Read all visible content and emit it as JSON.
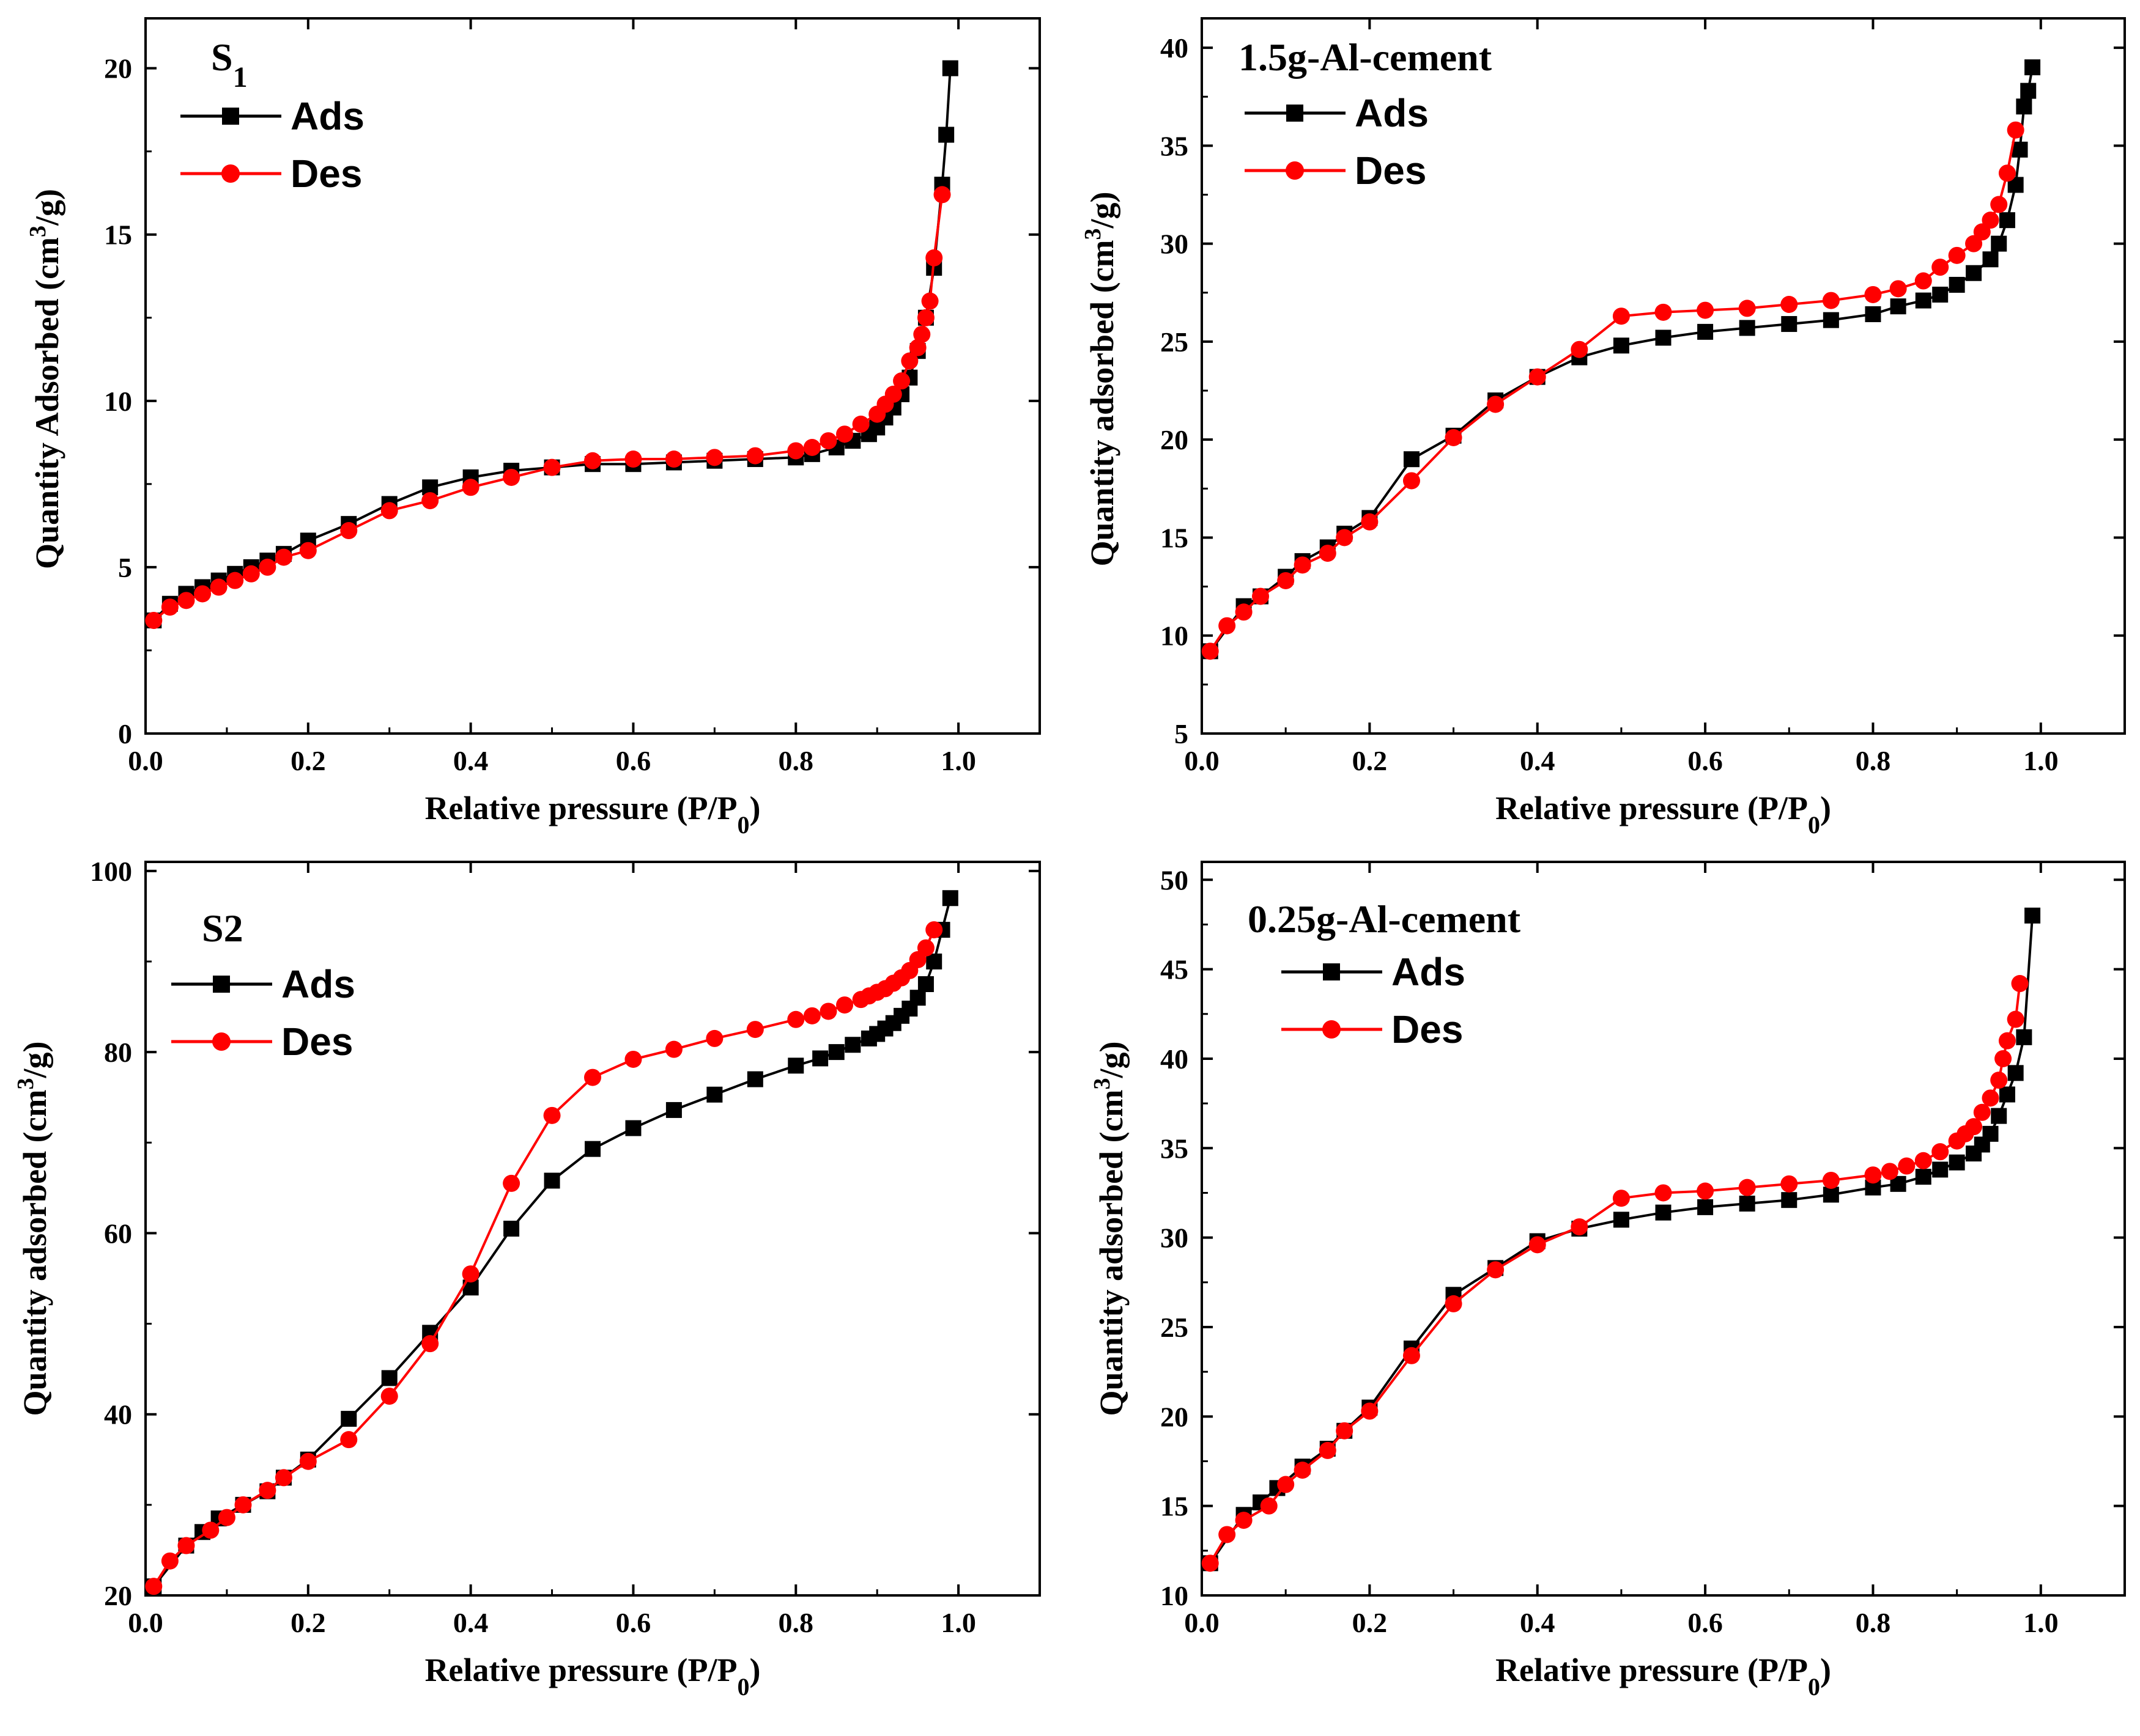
{
  "figure": {
    "colors": {
      "ads": "#000000",
      "des": "#ff0000",
      "axis": "#000000",
      "background": "#ffffff"
    }
  },
  "chart_data": [
    {
      "type": "line",
      "title": "S",
      "title_subscript": "1",
      "xlabel": "Relative pressure (P/P",
      "xlabel_sub": "0",
      "xlabel_end": ")",
      "ylabel": "Quantity Adsorbed (cm",
      "ylabel_sup": "3",
      "ylabel_end": "/g)",
      "xlim": [
        0,
        1.1
      ],
      "ylim": [
        0,
        21.5
      ],
      "xticks": [
        0.0,
        0.2,
        0.4,
        0.6,
        0.8,
        1.0
      ],
      "xtick_labels": [
        "0.0",
        "0.2",
        "0.4",
        "0.6",
        "0.8",
        "1.0"
      ],
      "yticks": [
        0,
        5,
        10,
        15,
        20
      ],
      "ytick_labels": [
        "0",
        "5",
        "10",
        "15",
        "20"
      ],
      "legend": [
        "Ads",
        "Des"
      ],
      "series": [
        {
          "name": "Ads",
          "marker": "square",
          "x": [
            0.01,
            0.03,
            0.05,
            0.07,
            0.09,
            0.11,
            0.13,
            0.15,
            0.17,
            0.2,
            0.25,
            0.3,
            0.35,
            0.4,
            0.45,
            0.5,
            0.55,
            0.6,
            0.65,
            0.7,
            0.75,
            0.8,
            0.82,
            0.85,
            0.87,
            0.89,
            0.9,
            0.91,
            0.92,
            0.93,
            0.94,
            0.95,
            0.96,
            0.97,
            0.98,
            0.985,
            0.99
          ],
          "y": [
            3.4,
            3.9,
            4.2,
            4.4,
            4.6,
            4.8,
            5.0,
            5.2,
            5.4,
            5.8,
            6.3,
            6.9,
            7.4,
            7.7,
            7.9,
            8.0,
            8.1,
            8.1,
            8.15,
            8.2,
            8.25,
            8.3,
            8.4,
            8.6,
            8.8,
            9.0,
            9.2,
            9.5,
            9.8,
            10.2,
            10.7,
            11.5,
            12.5,
            14.0,
            16.5,
            18.0,
            20.0
          ]
        },
        {
          "name": "Des",
          "marker": "circle",
          "x": [
            0.98,
            0.97,
            0.965,
            0.96,
            0.955,
            0.95,
            0.94,
            0.93,
            0.92,
            0.91,
            0.9,
            0.88,
            0.86,
            0.84,
            0.82,
            0.8,
            0.75,
            0.7,
            0.65,
            0.6,
            0.55,
            0.5,
            0.45,
            0.4,
            0.35,
            0.3,
            0.25,
            0.2,
            0.17,
            0.15,
            0.13,
            0.11,
            0.09,
            0.07,
            0.05,
            0.03,
            0.01
          ],
          "y": [
            16.2,
            14.3,
            13.0,
            12.5,
            12.0,
            11.6,
            11.2,
            10.6,
            10.2,
            9.9,
            9.6,
            9.3,
            9.0,
            8.8,
            8.6,
            8.5,
            8.35,
            8.3,
            8.25,
            8.25,
            8.2,
            8.0,
            7.7,
            7.4,
            7.0,
            6.7,
            6.1,
            5.5,
            5.3,
            5.0,
            4.8,
            4.6,
            4.4,
            4.2,
            4.0,
            3.8,
            3.4
          ]
        }
      ]
    },
    {
      "type": "line",
      "title": "1.5g-Al-cement",
      "xlabel": "Relative pressure (P/P",
      "xlabel_sub": "0",
      "xlabel_end": ")",
      "ylabel": "Quantity adsorbed (cm",
      "ylabel_sup": "3",
      "ylabel_end": "/g)",
      "xlim": [
        0,
        1.1
      ],
      "ylim": [
        5,
        41.5
      ],
      "xticks": [
        0.0,
        0.2,
        0.4,
        0.6,
        0.8,
        1.0
      ],
      "xtick_labels": [
        "0.0",
        "0.2",
        "0.4",
        "0.6",
        "0.8",
        "1.0"
      ],
      "yticks": [
        5,
        10,
        15,
        20,
        25,
        30,
        35,
        40
      ],
      "ytick_labels": [
        "5",
        "10",
        "15",
        "20",
        "25",
        "30",
        "35",
        "40"
      ],
      "legend": [
        "Ads",
        "Des"
      ],
      "series": [
        {
          "name": "Ads",
          "marker": "square",
          "x": [
            0.01,
            0.05,
            0.07,
            0.1,
            0.12,
            0.15,
            0.17,
            0.2,
            0.25,
            0.3,
            0.35,
            0.4,
            0.45,
            0.5,
            0.55,
            0.6,
            0.65,
            0.7,
            0.75,
            0.8,
            0.83,
            0.86,
            0.88,
            0.9,
            0.92,
            0.94,
            0.95,
            0.96,
            0.97,
            0.975,
            0.98,
            0.985,
            0.99
          ],
          "y": [
            9.2,
            11.5,
            12.0,
            13.0,
            13.8,
            14.5,
            15.2,
            16.0,
            19.0,
            20.2,
            22.0,
            23.2,
            24.2,
            24.8,
            25.2,
            25.5,
            25.7,
            25.9,
            26.1,
            26.4,
            26.8,
            27.1,
            27.4,
            27.9,
            28.5,
            29.2,
            30.0,
            31.2,
            33.0,
            34.8,
            37.0,
            37.8,
            39.0
          ]
        },
        {
          "name": "Des",
          "marker": "circle",
          "x": [
            0.97,
            0.96,
            0.95,
            0.94,
            0.93,
            0.92,
            0.9,
            0.88,
            0.86,
            0.83,
            0.8,
            0.75,
            0.7,
            0.65,
            0.6,
            0.55,
            0.5,
            0.45,
            0.4,
            0.35,
            0.3,
            0.25,
            0.2,
            0.17,
            0.15,
            0.12,
            0.1,
            0.07,
            0.05,
            0.03,
            0.01
          ],
          "y": [
            35.8,
            33.6,
            32.0,
            31.2,
            30.6,
            30.0,
            29.4,
            28.8,
            28.1,
            27.7,
            27.4,
            27.1,
            26.9,
            26.7,
            26.6,
            26.5,
            26.3,
            24.6,
            23.2,
            21.8,
            20.1,
            17.9,
            15.8,
            15.0,
            14.2,
            13.6,
            12.8,
            12.0,
            11.2,
            10.5,
            9.2
          ]
        }
      ]
    },
    {
      "type": "line",
      "title": "S2",
      "xlabel": "Relative pressure (P/P",
      "xlabel_sub": "0",
      "xlabel_end": ")",
      "ylabel": "Quantity adsorbed (cm",
      "ylabel_sup": "3",
      "ylabel_end": "/g)",
      "xlim": [
        0,
        1.1
      ],
      "ylim": [
        20,
        101
      ],
      "xticks": [
        0.0,
        0.2,
        0.4,
        0.6,
        0.8,
        1.0
      ],
      "xtick_labels": [
        "0.0",
        "0.2",
        "0.4",
        "0.6",
        "0.8",
        "1.0"
      ],
      "yticks": [
        20,
        40,
        60,
        80,
        100
      ],
      "ytick_labels": [
        "20",
        "40",
        "60",
        "80",
        "100"
      ],
      "legend": [
        "Ads",
        "Des"
      ],
      "series": [
        {
          "name": "Ads",
          "marker": "square",
          "x": [
            0.01,
            0.05,
            0.07,
            0.09,
            0.12,
            0.15,
            0.17,
            0.2,
            0.25,
            0.3,
            0.35,
            0.4,
            0.45,
            0.5,
            0.55,
            0.6,
            0.65,
            0.7,
            0.75,
            0.8,
            0.83,
            0.85,
            0.87,
            0.89,
            0.9,
            0.91,
            0.92,
            0.93,
            0.94,
            0.95,
            0.96,
            0.97,
            0.98,
            0.99
          ],
          "y": [
            21.0,
            25.5,
            27.0,
            28.5,
            30.0,
            31.5,
            33.0,
            35.0,
            39.5,
            44.0,
            49.0,
            54.0,
            60.5,
            65.8,
            69.3,
            71.6,
            73.6,
            75.3,
            77.0,
            78.5,
            79.3,
            80.0,
            80.8,
            81.5,
            82.0,
            82.6,
            83.2,
            84.0,
            84.8,
            86.0,
            87.5,
            90.0,
            93.5,
            97.0
          ]
        },
        {
          "name": "Des",
          "marker": "circle",
          "x": [
            0.97,
            0.96,
            0.95,
            0.94,
            0.93,
            0.92,
            0.91,
            0.9,
            0.89,
            0.88,
            0.86,
            0.84,
            0.82,
            0.8,
            0.75,
            0.7,
            0.65,
            0.6,
            0.55,
            0.5,
            0.45,
            0.4,
            0.35,
            0.3,
            0.25,
            0.2,
            0.17,
            0.15,
            0.12,
            0.1,
            0.08,
            0.05,
            0.03,
            0.01
          ],
          "y": [
            93.5,
            91.5,
            90.2,
            89.0,
            88.2,
            87.6,
            87.0,
            86.6,
            86.2,
            85.8,
            85.2,
            84.5,
            84.0,
            83.6,
            82.5,
            81.5,
            80.3,
            79.2,
            77.2,
            73.0,
            65.5,
            55.5,
            47.8,
            42.0,
            37.2,
            34.8,
            33.0,
            31.6,
            30.0,
            28.6,
            27.2,
            25.5,
            23.8,
            21.0
          ]
        }
      ]
    },
    {
      "type": "line",
      "title": "0.25g-Al-cement",
      "xlabel": "Relative pressure (P/P",
      "xlabel_sub": "0",
      "xlabel_end": ")",
      "ylabel": "Quantity adsorbed (cm",
      "ylabel_sup": "3",
      "ylabel_end": "/g)",
      "xlim": [
        0,
        1.1
      ],
      "ylim": [
        10,
        51
      ],
      "xticks": [
        0.0,
        0.2,
        0.4,
        0.6,
        0.8,
        1.0
      ],
      "xtick_labels": [
        "0.0",
        "0.2",
        "0.4",
        "0.6",
        "0.8",
        "1.0"
      ],
      "yticks": [
        10,
        15,
        20,
        25,
        30,
        35,
        40,
        45,
        50
      ],
      "ytick_labels": [
        "10",
        "15",
        "20",
        "25",
        "30",
        "35",
        "40",
        "45",
        "50"
      ],
      "legend": [
        "Ads",
        "Des"
      ],
      "series": [
        {
          "name": "Ads",
          "marker": "square",
          "x": [
            0.01,
            0.05,
            0.07,
            0.09,
            0.12,
            0.15,
            0.17,
            0.2,
            0.25,
            0.3,
            0.35,
            0.4,
            0.45,
            0.5,
            0.55,
            0.6,
            0.65,
            0.7,
            0.75,
            0.8,
            0.83,
            0.86,
            0.88,
            0.9,
            0.92,
            0.93,
            0.94,
            0.95,
            0.96,
            0.97,
            0.98,
            0.99
          ],
          "y": [
            11.8,
            14.5,
            15.2,
            16.0,
            17.2,
            18.2,
            19.2,
            20.5,
            23.8,
            26.8,
            28.3,
            29.8,
            30.5,
            31.0,
            31.4,
            31.7,
            31.9,
            32.1,
            32.4,
            32.8,
            33.0,
            33.4,
            33.8,
            34.2,
            34.7,
            35.2,
            35.8,
            36.8,
            38.0,
            39.2,
            41.2,
            48.0
          ]
        },
        {
          "name": "Des",
          "marker": "circle",
          "x": [
            0.975,
            0.97,
            0.96,
            0.955,
            0.95,
            0.94,
            0.93,
            0.92,
            0.91,
            0.9,
            0.88,
            0.86,
            0.84,
            0.82,
            0.8,
            0.75,
            0.7,
            0.65,
            0.6,
            0.55,
            0.5,
            0.45,
            0.4,
            0.35,
            0.3,
            0.25,
            0.2,
            0.17,
            0.15,
            0.12,
            0.1,
            0.08,
            0.05,
            0.03,
            0.01
          ],
          "y": [
            44.2,
            42.2,
            41.0,
            40.0,
            38.8,
            37.8,
            37.0,
            36.2,
            35.8,
            35.4,
            34.8,
            34.3,
            34.0,
            33.7,
            33.5,
            33.2,
            33.0,
            32.8,
            32.6,
            32.5,
            32.2,
            30.6,
            29.6,
            28.2,
            26.3,
            23.4,
            20.3,
            19.2,
            18.1,
            17.0,
            16.2,
            15.0,
            14.2,
            13.4,
            11.8
          ]
        }
      ]
    }
  ]
}
